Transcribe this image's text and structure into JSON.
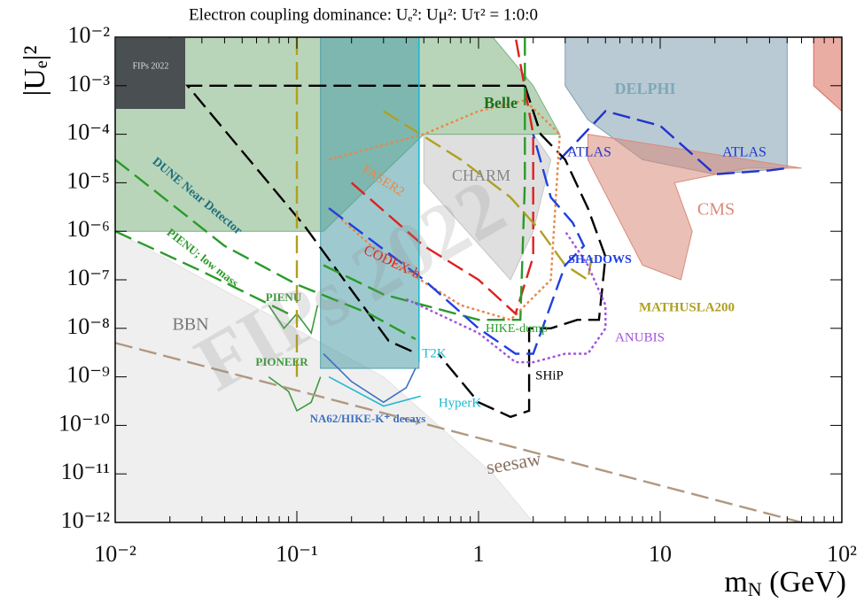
{
  "chart_data": {
    "type": "line",
    "title": "Electron coupling dominance: Uₑ²: Uμ²: Uτ² = 1:0:0",
    "y_label": "|Uₑ|²",
    "x_label": {
      "base": "m",
      "sub": "N",
      "rest": " (GeV)"
    },
    "badge": "FIPs 2022",
    "xscale": "log",
    "yscale": "log",
    "xlim": [
      0.01,
      100
    ],
    "ylim": [
      1e-12,
      0.01
    ],
    "xticks": [
      {
        "value": 0.01,
        "label": "10⁻²"
      },
      {
        "value": 0.1,
        "label": "10⁻¹"
      },
      1,
      10,
      {
        "value": 100,
        "label": "10²"
      }
    ],
    "yticks": [
      {
        "value": 1e-12,
        "label": "10⁻¹²"
      },
      {
        "value": 1e-11,
        "label": "10⁻¹¹"
      },
      {
        "value": 1e-10,
        "label": "10⁻¹⁰"
      },
      {
        "value": 1e-09,
        "label": "10⁻⁹"
      },
      {
        "value": 1e-08,
        "label": "10⁻⁸"
      },
      {
        "value": 1e-07,
        "label": "10⁻⁷"
      },
      {
        "value": 1e-06,
        "label": "10⁻⁶"
      },
      {
        "value": 1e-05,
        "label": "10⁻⁵"
      },
      {
        "value": 0.0001,
        "label": "10⁻⁴"
      },
      {
        "value": 0.001,
        "label": "10⁻³"
      },
      {
        "value": 0.01,
        "label": "10⁻²"
      }
    ],
    "series": [
      {
        "name": "BBN",
        "color": "#e2e2e2",
        "style": "fill",
        "x": [
          0.01,
          0.01,
          0.3,
          0.6,
          1.2,
          2,
          0.01
        ],
        "values": [
          1e-12,
          1e-06,
          1e-09,
          1e-10,
          1e-11,
          1e-12,
          1e-12
        ]
      },
      {
        "name": "CHARM",
        "color": "#c4c4c4",
        "style": "fill",
        "x": [
          0.5,
          2,
          2.5,
          2,
          1.5,
          0.5
        ],
        "values": [
          0.0001,
          0.0001,
          3e-05,
          1e-06,
          1e-07,
          1e-05
        ]
      },
      {
        "name": "Belle",
        "color": "#7fb27f",
        "style": "fill",
        "x": [
          0.01,
          1.2,
          2,
          2.8,
          0.5,
          0.14,
          0.1,
          0.01
        ],
        "values": [
          0.01,
          0.01,
          0.001,
          0.0001,
          0.0001,
          1e-06,
          1e-06,
          1e-06
        ]
      },
      {
        "color": "#4f9fa8",
        "style": "fill",
        "x": [
          0.135,
          0.47,
          0.47,
          0.135
        ],
        "values": [
          0.01,
          0.01,
          1.5e-09,
          1.5e-09
        ]
      },
      {
        "name": "DELPHI",
        "color": "#7f9fb0",
        "style": "fill",
        "x": [
          3,
          50,
          50,
          20,
          8,
          4,
          3
        ],
        "values": [
          0.01,
          0.01,
          2e-05,
          1.5e-05,
          3e-05,
          0.0002,
          0.001
        ]
      },
      {
        "name": "CMS",
        "color": "#d98a7a",
        "style": "fill",
        "x": [
          4,
          8,
          13,
          15,
          12,
          30,
          60,
          4
        ],
        "values": [
          3e-05,
          2e-07,
          1e-07,
          1e-06,
          1e-05,
          2e-05,
          2e-05,
          0.0001
        ]
      },
      {
        "name": "ATLAS",
        "color": "#2233cc",
        "style": "dash",
        "x": [
          2.8,
          5,
          10,
          20,
          40,
          50
        ],
        "values": [
          3e-05,
          0.0003,
          0.00015,
          1.5e-05,
          1.8e-05,
          2e-05
        ]
      },
      {
        "color": "#000000",
        "style": "dash",
        "x": [
          1.8,
          0.025,
          0.11,
          0.32,
          0.46
        ],
        "values": [
          0.001,
          0.001,
          1.3e-06,
          5.5e-09,
          3e-09
        ]
      },
      {
        "name": "SHiP",
        "color": "#000000",
        "style": "dash",
        "x": [
          1.8,
          2.2,
          3,
          4,
          5,
          4.6,
          3.5,
          2.5,
          1.9,
          1.9,
          1.5,
          1,
          0.6
        ],
        "values": [
          0.001,
          0.0001,
          3e-05,
          3e-06,
          3e-07,
          1.5e-08,
          1.5e-08,
          1e-08,
          1e-08,
          2e-10,
          1.5e-10,
          3e-10,
          3e-09
        ]
      },
      {
        "name": "DUNE Near Detector",
        "color": "#2a9a2a",
        "style": "dash",
        "x": [
          0.01,
          0.04,
          0.1,
          0.25,
          0.45
        ],
        "values": [
          3e-05,
          5e-07,
          8e-08,
          2e-08,
          6e-09
        ]
      },
      {
        "name": "PIENU; low mass",
        "color": "#2a9a2a",
        "style": "dash",
        "x": [
          0.01,
          0.03,
          0.09
        ],
        "values": [
          1e-06,
          1.5e-07,
          2e-08
        ]
      },
      {
        "name": "FASER2",
        "color": "#e8884a",
        "style": "dot",
        "x": [
          0.15,
          0.5,
          1,
          1.8,
          2.8,
          2.5,
          1.5,
          0.8,
          0.3,
          0.15
        ],
        "values": [
          3e-05,
          0.0001,
          0.0003,
          0.0005,
          0.0001,
          1e-07,
          1.5e-08,
          3e-08,
          3e-07,
          3e-06
        ]
      },
      {
        "name": "CODEX-b",
        "color": "#e02020",
        "style": "dash",
        "x": [
          0.2,
          0.5,
          1,
          1.6,
          2,
          2,
          1.6
        ],
        "values": [
          1e-05,
          5e-07,
          1e-07,
          2e-08,
          3e-07,
          0.0001,
          0.01
        ]
      },
      {
        "name": "HIKE-dump",
        "color": "#2a9a2a",
        "style": "dash",
        "x": [
          0.14,
          0.3,
          1,
          1.7,
          1.8,
          1.8
        ],
        "values": [
          2e-07,
          5e-08,
          1.5e-08,
          1.5e-08,
          1e-05,
          0.01
        ]
      },
      {
        "name": "MATHUSLA200",
        "color": "#b0a020",
        "style": "dash",
        "x": [
          0.3,
          0.8,
          1.5,
          2.2,
          3,
          4,
          4.2
        ],
        "values": [
          0.0003,
          3e-05,
          5e-06,
          1e-06,
          2e-07,
          1e-07,
          3e-07
        ]
      },
      {
        "name": "ANUBIS",
        "color": "#a050e0",
        "style": "dot",
        "x": [
          0.4,
          1,
          1.6,
          2,
          3,
          4,
          5,
          5,
          4,
          3
        ],
        "values": [
          4e-08,
          8e-09,
          2e-09,
          2e-09,
          3e-09,
          3e-09,
          1e-08,
          3e-08,
          2e-07,
          1e-06
        ]
      },
      {
        "name": "SHADOWS",
        "color": "#2040e0",
        "style": "dash",
        "x": [
          0.15,
          0.5,
          1,
          1.6,
          2,
          3,
          3.8,
          3.3,
          2.5,
          2
        ],
        "values": [
          3e-06,
          1e-07,
          1e-08,
          3e-09,
          3e-09,
          2e-07,
          5e-07,
          1.5e-06,
          5e-06,
          0.0001
        ]
      },
      {
        "name": "PIENU",
        "color": "#3d9a3d",
        "style": "solid",
        "x": [
          0.07,
          0.085,
          0.1,
          0.12,
          0.13
        ],
        "values": [
          3e-08,
          1e-08,
          2e-08,
          8e-09,
          3e-08
        ]
      },
      {
        "name": "PIONEER",
        "color": "#3d9a3d",
        "style": "solid",
        "x": [
          0.07,
          0.09,
          0.1,
          0.12,
          0.135
        ],
        "values": [
          1e-09,
          5e-10,
          2e-10,
          3e-10,
          1e-09
        ]
      },
      {
        "name": "NA62/HIKE-K⁺ decays",
        "color": "#4070c0",
        "style": "solid",
        "x": [
          0.14,
          0.2,
          0.3,
          0.4,
          0.45
        ],
        "values": [
          3e-09,
          8e-10,
          3e-10,
          6e-10,
          1.5e-09
        ]
      },
      {
        "name": "T2K",
        "color": "#20b8d0",
        "style": "solid",
        "x": [
          0.47,
          0.47
        ],
        "values": [
          0.01,
          2e-09
        ]
      },
      {
        "name": "HyperK",
        "color": "#20b8d0",
        "style": "solid",
        "x": [
          0.15,
          0.3,
          0.48
        ],
        "values": [
          1e-09,
          2.5e-10,
          4e-10
        ]
      },
      {
        "color": "#b0a020",
        "style": "dash",
        "x": [
          0.1,
          0.1
        ],
        "values": [
          0.01,
          1e-09
        ]
      },
      {
        "name": "seesaw",
        "color": "#b09880",
        "style": "dash",
        "x": [
          0.01,
          60
        ],
        "values": [
          5e-09,
          1e-12
        ]
      },
      {
        "color": "#d96a5a",
        "style": "fill",
        "x": [
          70,
          100,
          100,
          70
        ],
        "values": [
          0.01,
          0.01,
          0.0003,
          0.001
        ]
      }
    ]
  }
}
